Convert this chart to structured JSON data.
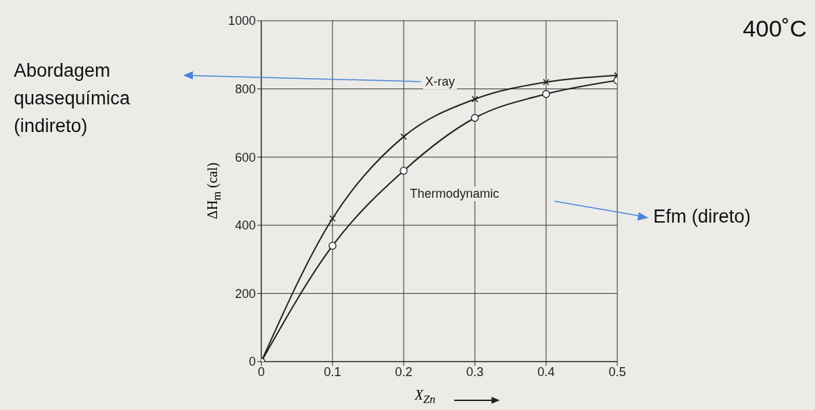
{
  "chart_data": {
    "type": "line",
    "title": "400˚C",
    "xlabel": "X$_{Zn}$",
    "ylabel": "ΔH$_{m}$ (cal)",
    "x": [
      0,
      0.1,
      0.2,
      0.3,
      0.4,
      0.5
    ],
    "series": [
      {
        "name": "X-ray",
        "color": "#222222",
        "marker": "cross",
        "values": [
          0,
          420,
          660,
          770,
          820,
          840
        ]
      },
      {
        "name": "Thermodynamic",
        "color": "#222222",
        "marker": "circle",
        "values": [
          0,
          340,
          560,
          715,
          785,
          825
        ]
      }
    ],
    "xlim": [
      0,
      0.5
    ],
    "xticks": [
      0,
      0.1,
      0.2,
      0.3,
      0.4,
      0.5
    ],
    "ylim": [
      0,
      1000
    ],
    "yticks": [
      0,
      200,
      400,
      600,
      800,
      1000
    ],
    "grid": true,
    "line_style": "solid",
    "annotations": [
      "Abordagem quasequímica (indireto)",
      "Efm (direto)"
    ]
  }
}
